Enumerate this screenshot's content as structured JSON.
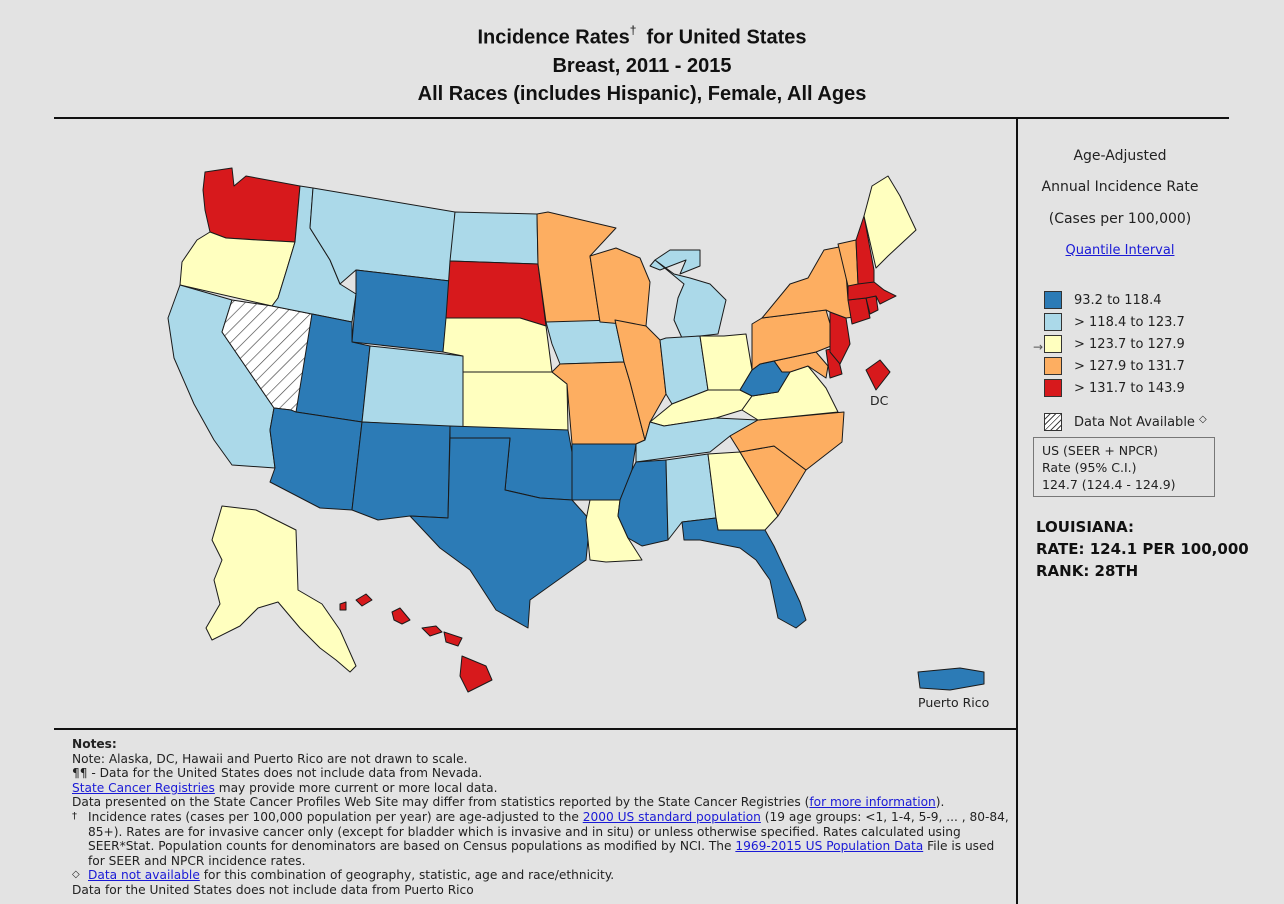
{
  "title": {
    "line1": "Incidence Rates",
    "dagger": "†",
    "line1_suffix": "for United States",
    "line2": "Breast, 2011 - 2015",
    "line3": "All Races (includes Hispanic), Female, All Ages"
  },
  "legend": {
    "title1": "Age-Adjusted",
    "title2": "Annual Incidence Rate",
    "title3": "(Cases per 100,000)",
    "interval_link": "Quantile Interval",
    "items": [
      {
        "label": "93.2  to  118.4",
        "color": "#2c7bb6"
      },
      {
        "label": "> 118.4  to  123.7",
        "color": "#abd9e9"
      },
      {
        "label": "> 123.7  to  127.9",
        "color": "#ffffbf"
      },
      {
        "label": "> 127.9  to  131.7",
        "color": "#fdae61"
      },
      {
        "label": "> 131.7  to  143.9",
        "color": "#d7191c"
      }
    ],
    "na_label": "Data Not Available",
    "na_mark": "◇",
    "marker": "→"
  },
  "us_summary": {
    "line1": "US (SEER + NPCR)",
    "line2": "Rate  (95% C.I.)",
    "line3": "124.7 (124.4 - 124.9)"
  },
  "selected_state": {
    "name": "LOUISIANA:",
    "rate": "RATE: 124.1 PER 100,000",
    "rank": "RANK: 28TH"
  },
  "map_labels": {
    "dc": "DC",
    "pr": "Puerto Rico"
  },
  "states": [
    {
      "id": "WA",
      "cls": 5
    },
    {
      "id": "OR",
      "cls": 3
    },
    {
      "id": "CA",
      "cls": 2
    },
    {
      "id": "NV",
      "cls": 0
    },
    {
      "id": "ID",
      "cls": 2
    },
    {
      "id": "MT",
      "cls": 2
    },
    {
      "id": "WY",
      "cls": 1
    },
    {
      "id": "UT",
      "cls": 1
    },
    {
      "id": "AZ",
      "cls": 1
    },
    {
      "id": "CO",
      "cls": 2
    },
    {
      "id": "NM",
      "cls": 1
    },
    {
      "id": "ND",
      "cls": 2
    },
    {
      "id": "SD",
      "cls": 5
    },
    {
      "id": "NE",
      "cls": 3
    },
    {
      "id": "KS",
      "cls": 3
    },
    {
      "id": "OK",
      "cls": 1
    },
    {
      "id": "TX",
      "cls": 1
    },
    {
      "id": "MN",
      "cls": 4
    },
    {
      "id": "IA",
      "cls": 2
    },
    {
      "id": "MO",
      "cls": 4
    },
    {
      "id": "AR",
      "cls": 1
    },
    {
      "id": "LA",
      "cls": 3
    },
    {
      "id": "WI",
      "cls": 4
    },
    {
      "id": "IL",
      "cls": 4
    },
    {
      "id": "MI",
      "cls": 2
    },
    {
      "id": "IN",
      "cls": 2
    },
    {
      "id": "OH",
      "cls": 3
    },
    {
      "id": "KY",
      "cls": 3
    },
    {
      "id": "TN",
      "cls": 2
    },
    {
      "id": "MS",
      "cls": 1
    },
    {
      "id": "AL",
      "cls": 2
    },
    {
      "id": "GA",
      "cls": 3
    },
    {
      "id": "FL",
      "cls": 1
    },
    {
      "id": "SC",
      "cls": 4
    },
    {
      "id": "NC",
      "cls": 4
    },
    {
      "id": "VA",
      "cls": 3
    },
    {
      "id": "WV",
      "cls": 1
    },
    {
      "id": "MD",
      "cls": 4
    },
    {
      "id": "DE",
      "cls": 5
    },
    {
      "id": "PA",
      "cls": 4
    },
    {
      "id": "NJ",
      "cls": 5
    },
    {
      "id": "NY",
      "cls": 4
    },
    {
      "id": "CT",
      "cls": 5
    },
    {
      "id": "RI",
      "cls": 5
    },
    {
      "id": "MA",
      "cls": 5
    },
    {
      "id": "VT",
      "cls": 4
    },
    {
      "id": "NH",
      "cls": 5
    },
    {
      "id": "ME",
      "cls": 3
    },
    {
      "id": "AK",
      "cls": 3
    },
    {
      "id": "HI",
      "cls": 5
    },
    {
      "id": "DC",
      "cls": 5
    },
    {
      "id": "PR",
      "cls": 1
    }
  ],
  "notes": {
    "head": "Notes:",
    "l1": "Note: Alaska, DC, Hawaii and Puerto Rico are not drawn to scale.",
    "l2": "¶¶ - Data for the United States does not include data from Nevada.",
    "l3_link": "State Cancer Registries",
    "l3_rest": " may provide more current or more local data.",
    "l4_pre": "Data presented on the State Cancer Profiles Web Site may differ from statistics reported by the State Cancer Registries (",
    "l4_link": "for more information",
    "l4_post": ").",
    "l5_mark": "†",
    "l5_pre": "Incidence rates (cases per 100,000 population per year) are age-adjusted to the ",
    "l5_link": "2000 US standard population",
    "l5_post": " (19 age groups: <1, 1-4, 5-9, ... , 80-84, 85+). Rates are for invasive cancer only (except for bladder which is invasive and in situ) or unless otherwise specified. Rates calculated using SEER*Stat. Population counts for denominators are based on Census populations as modified  by NCI. The ",
    "l5_link2": "1969-2015 US Population Data",
    "l5_post2": " File is used for SEER and NPCR incidence rates.",
    "l6_mark": "◇",
    "l6_link": "Data not available",
    "l6_rest": "  for this combination of geography, statistic, age and race/ethnicity.",
    "l7": "Data for the United States does not include data from Puerto Rico"
  }
}
